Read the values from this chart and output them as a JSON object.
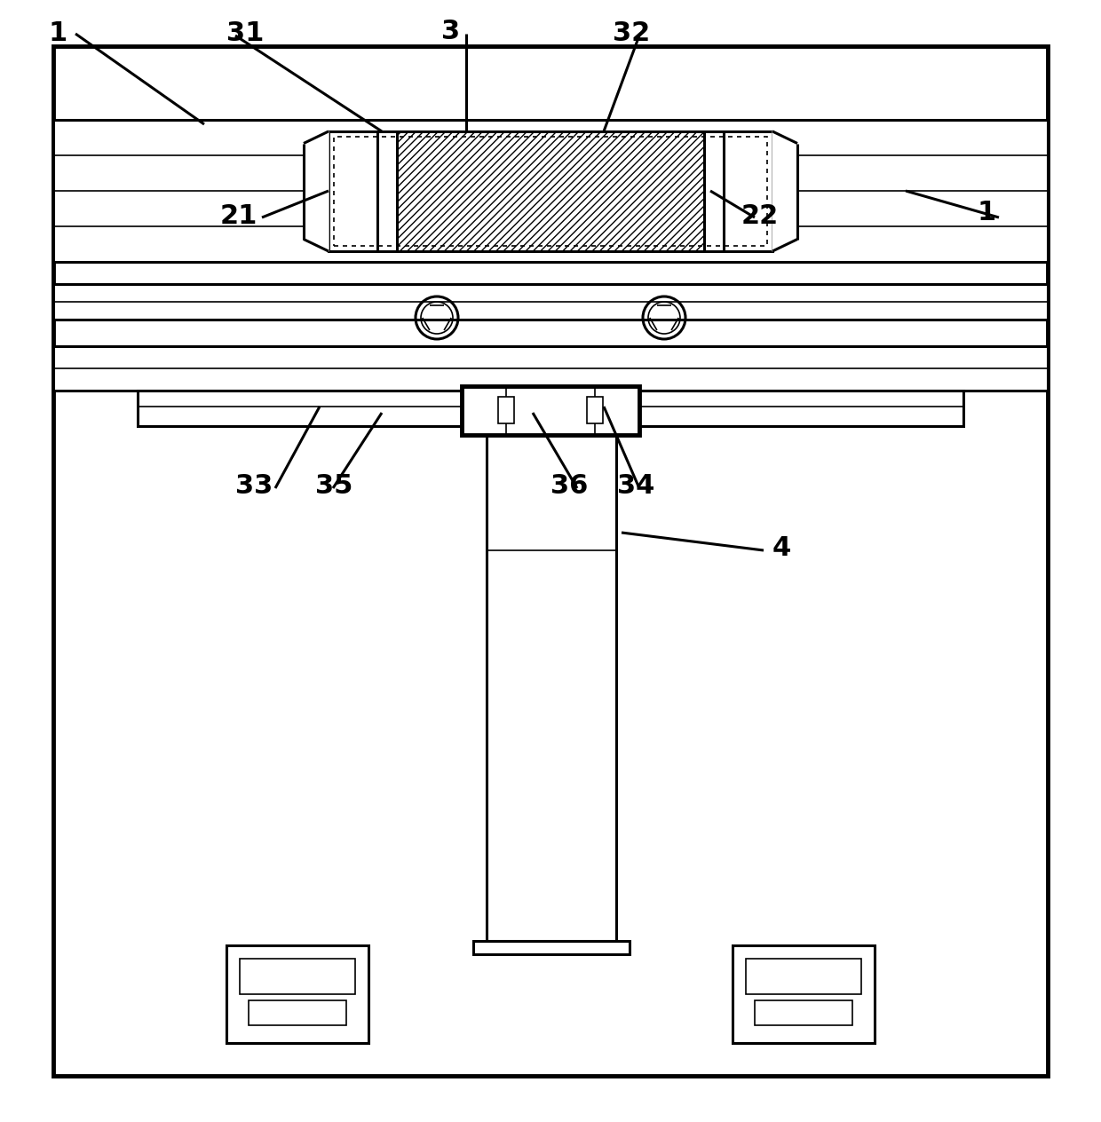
{
  "bg_color": "#ffffff",
  "lw": 2.2,
  "lw_thin": 1.2,
  "lw_thick": 3.5,
  "fig_width": 12.4,
  "fig_height": 12.64
}
